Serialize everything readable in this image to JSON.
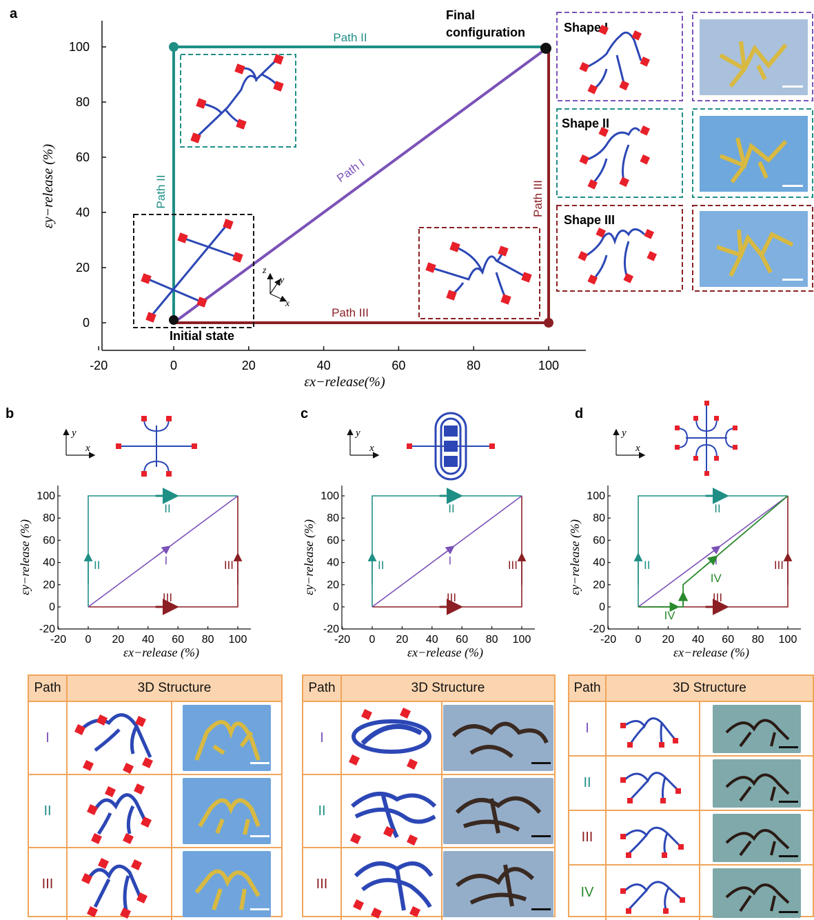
{
  "panel_a": {
    "label": "a",
    "x_ticks": [
      "-20",
      "0",
      "20",
      "40",
      "60",
      "80",
      "100"
    ],
    "y_ticks": [
      "0",
      "20",
      "40",
      "60",
      "80",
      "100"
    ],
    "xlabel": "εx−release(%)",
    "ylabel": "εy−release (%)",
    "initial_state": "Initial state",
    "final_line1": "Final",
    "final_line2": "configuration",
    "path1_label": "Path I",
    "path2_top_label": "Path II",
    "path2_side_label": "Path II",
    "path3_bottom_label": "Path III",
    "path3_side_label": "Path III",
    "axes_z": "z",
    "axes_y": "y",
    "axes_x": "x",
    "shapes": [
      "Shape I",
      "Shape II",
      "Shape III"
    ]
  },
  "panel_b": {
    "label": "b",
    "ax_y": "y",
    "ax_x": "x",
    "x_ticks": [
      "-20",
      "0",
      "20",
      "40",
      "60",
      "80",
      "100"
    ],
    "y_ticks": [
      "-20",
      "0",
      "20",
      "40",
      "60",
      "80",
      "100"
    ],
    "xlabel": "εx−release (%)",
    "ylabel": "εy−release (%)",
    "path_labels": {
      "top": "II",
      "left": "II",
      "diag": "I",
      "right": "III",
      "bottom": "III"
    },
    "table": {
      "col1": "Path",
      "col2": "3D Structure",
      "rows": [
        "I",
        "II",
        "III"
      ]
    }
  },
  "panel_c": {
    "label": "c",
    "ax_y": "y",
    "ax_x": "x",
    "x_ticks": [
      "-20",
      "0",
      "20",
      "40",
      "60",
      "80",
      "100"
    ],
    "y_ticks": [
      "-20",
      "0",
      "20",
      "40",
      "60",
      "80",
      "100"
    ],
    "xlabel": "εx−release (%)",
    "ylabel": "εy−release (%)",
    "path_labels": {
      "top": "II",
      "left": "II",
      "diag": "I",
      "right": "III",
      "bottom": "III"
    },
    "table": {
      "col1": "Path",
      "col2": "3D Structure",
      "rows": [
        "I",
        "II",
        "III"
      ]
    }
  },
  "panel_d": {
    "label": "d",
    "ax_y": "y",
    "ax_x": "x",
    "x_ticks": [
      "-20",
      "0",
      "20",
      "40",
      "60",
      "80",
      "100"
    ],
    "y_ticks": [
      "-20",
      "0",
      "20",
      "40",
      "60",
      "80",
      "100"
    ],
    "xlabel": "εx−release (%)",
    "ylabel": "εy−release (%)",
    "path_labels": {
      "top": "II",
      "left": "II",
      "diag": "I",
      "right": "III",
      "bottom": "III",
      "iv_low": "IV",
      "iv_mid": "IV"
    },
    "table": {
      "col1": "Path",
      "col2": "3D Structure",
      "rows": [
        "I",
        "II",
        "III",
        "IV"
      ]
    }
  },
  "colors": {
    "path1": "#7b52b8",
    "path2": "#1f8f86",
    "path3": "#8b1f24",
    "path4": "#2a8a2e",
    "ribbon": "#2c47b5",
    "pad": "#e8202a",
    "table_border": "#f0a55a",
    "table_header": "#fbd5b0"
  }
}
